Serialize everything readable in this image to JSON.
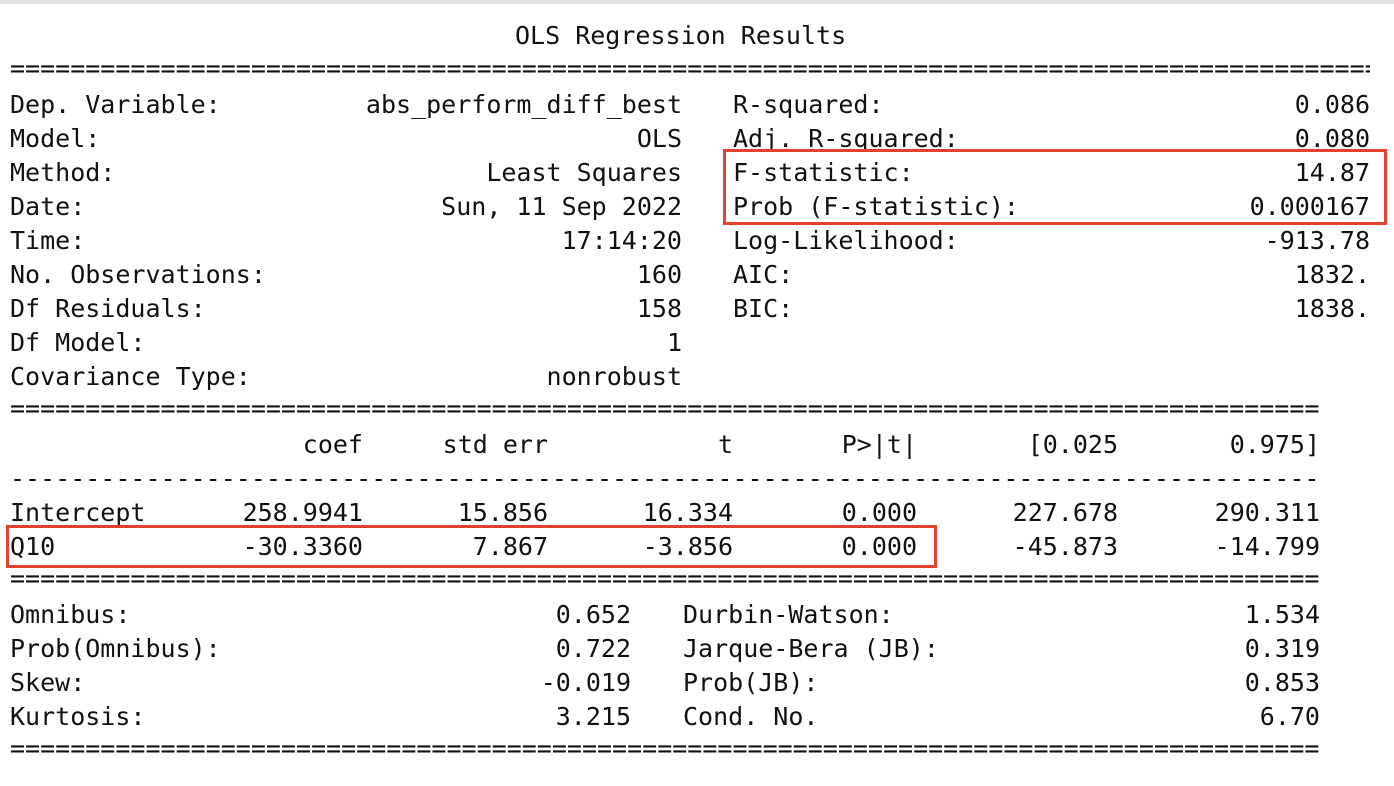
{
  "title": "OLS Regression Results",
  "rule_double": "==============================================================================",
  "rule_dash": "------------------------------------------------------------------------------",
  "header": {
    "left": [
      {
        "label": "Dep. Variable:",
        "value": "abs_perform_diff_best"
      },
      {
        "label": "Model:",
        "value": "OLS"
      },
      {
        "label": "Method:",
        "value": "Least Squares"
      },
      {
        "label": "Date:",
        "value": "Sun, 11 Sep 2022"
      },
      {
        "label": "Time:",
        "value": "17:14:20"
      },
      {
        "label": "No. Observations:",
        "value": "160"
      },
      {
        "label": "Df Residuals:",
        "value": "158"
      },
      {
        "label": "Df Model:",
        "value": "1"
      },
      {
        "label": "Covariance Type:",
        "value": "nonrobust"
      }
    ],
    "right": [
      {
        "label": "R-squared:",
        "value": "0.086"
      },
      {
        "label": "Adj. R-squared:",
        "value": "0.080"
      },
      {
        "label": "F-statistic:",
        "value": "14.87"
      },
      {
        "label": "Prob (F-statistic):",
        "value": "0.000167"
      },
      {
        "label": "Log-Likelihood:",
        "value": "-913.78"
      },
      {
        "label": "AIC:",
        "value": "1832."
      },
      {
        "label": "BIC:",
        "value": "1838."
      }
    ]
  },
  "coef_table": {
    "columns": [
      "coef",
      "std err",
      "t",
      "P>|t|",
      "[0.025",
      "0.975]"
    ],
    "rows": [
      {
        "name": "Intercept",
        "values": [
          "258.9941",
          "15.856",
          "16.334",
          "0.000",
          "227.678",
          "290.311"
        ]
      },
      {
        "name": "Q10",
        "values": [
          "-30.3360",
          "7.867",
          "-3.856",
          "0.000",
          "-45.873",
          "-14.799"
        ]
      }
    ]
  },
  "diagnostics": {
    "left": [
      {
        "label": "Omnibus:",
        "value": "0.652"
      },
      {
        "label": "Prob(Omnibus):",
        "value": "0.722"
      },
      {
        "label": "Skew:",
        "value": "-0.019"
      },
      {
        "label": "Kurtosis:",
        "value": "3.215"
      }
    ],
    "right": [
      {
        "label": "Durbin-Watson:",
        "value": "1.534"
      },
      {
        "label": "Jarque-Bera (JB):",
        "value": "0.319"
      },
      {
        "label": "Prob(JB):",
        "value": "0.853"
      },
      {
        "label": "Cond. No.",
        "value": "6.70"
      }
    ]
  },
  "highlight_color": "#e2412f"
}
